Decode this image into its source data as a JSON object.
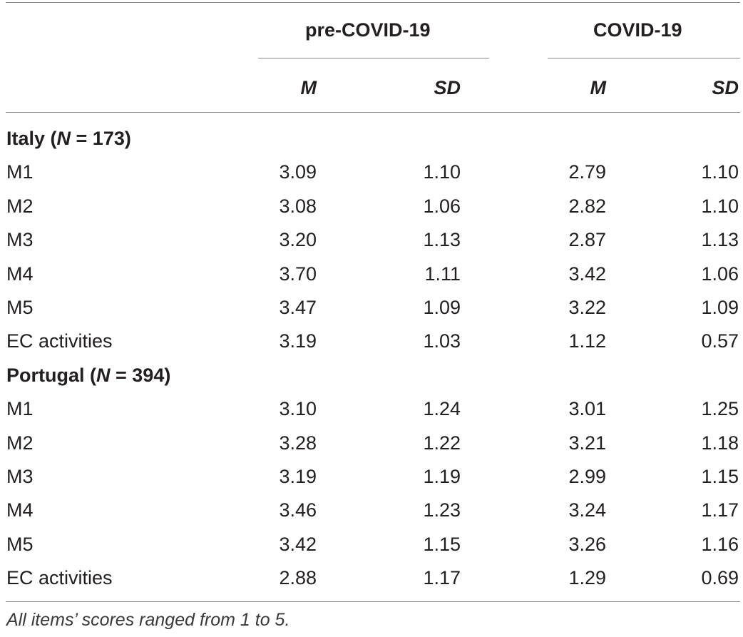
{
  "header": {
    "groups": [
      "pre-COVID-19",
      "COVID-19"
    ],
    "subheaders": [
      "M",
      "SD",
      "M",
      "SD"
    ]
  },
  "sections": [
    {
      "name": "Italy",
      "n_label": "N",
      "n_text": " = 173)",
      "rows": [
        {
          "label": "M1",
          "values": [
            "3.09",
            "1.10",
            "2.79",
            "1.10"
          ]
        },
        {
          "label": "M2",
          "values": [
            "3.08",
            "1.06",
            "2.82",
            "1.10"
          ]
        },
        {
          "label": "M3",
          "values": [
            "3.20",
            "1.13",
            "2.87",
            "1.13"
          ]
        },
        {
          "label": "M4",
          "values": [
            "3.70",
            "1.11",
            "3.42",
            "1.06"
          ]
        },
        {
          "label": "M5",
          "values": [
            "3.47",
            "1.09",
            "3.22",
            "1.09"
          ]
        },
        {
          "label": "EC activities",
          "values": [
            "3.19",
            "1.03",
            "1.12",
            "0.57"
          ]
        }
      ]
    },
    {
      "name": "Portugal",
      "n_label": "N",
      "n_text": " = 394)",
      "rows": [
        {
          "label": "M1",
          "values": [
            "3.10",
            "1.24",
            "3.01",
            "1.25"
          ]
        },
        {
          "label": "M2",
          "values": [
            "3.28",
            "1.22",
            "3.21",
            "1.18"
          ]
        },
        {
          "label": "M3",
          "values": [
            "3.19",
            "1.19",
            "2.99",
            "1.15"
          ]
        },
        {
          "label": "M4",
          "values": [
            "3.46",
            "1.23",
            "3.24",
            "1.17"
          ]
        },
        {
          "label": "M5",
          "values": [
            "3.42",
            "1.15",
            "3.26",
            "1.16"
          ]
        },
        {
          "label": "EC activities",
          "values": [
            "2.88",
            "1.17",
            "1.29",
            "0.69"
          ]
        }
      ]
    }
  ],
  "footnote": "All items’ scores ranged from 1 to 5."
}
